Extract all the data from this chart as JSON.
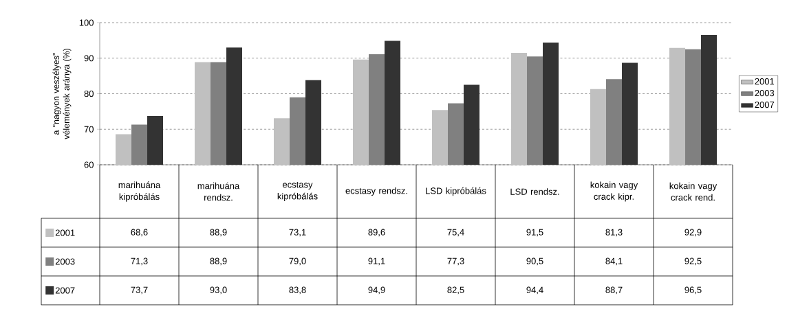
{
  "chart_data": {
    "type": "bar",
    "ylabel": "a \"nagyon veszélyes\" vélemények aránya (%)",
    "categories": [
      "marihuána kipróbálás",
      "marihuána rendsz.",
      "ecstasy kipróbálás",
      "ecstasy rendsz.",
      "LSD kipróbálás",
      "LSD rendsz.",
      "kokain vagy crack kipr.",
      "kokain vagy crack rend."
    ],
    "series": [
      {
        "name": "2001",
        "color": "#c0c0c0",
        "values": [
          68.6,
          88.9,
          73.1,
          89.6,
          75.4,
          91.5,
          81.3,
          92.9
        ],
        "value_labels": [
          "68,6",
          "88,9",
          "73,1",
          "89,6",
          "75,4",
          "91,5",
          "81,3",
          "92,9"
        ]
      },
      {
        "name": "2003",
        "color": "#808080",
        "values": [
          71.3,
          88.9,
          79.0,
          91.1,
          77.3,
          90.5,
          84.1,
          92.5
        ],
        "value_labels": [
          "71,3",
          "88,9",
          "79,0",
          "91,1",
          "77,3",
          "90,5",
          "84,1",
          "92,5"
        ]
      },
      {
        "name": "2007",
        "color": "#333333",
        "values": [
          73.7,
          93.0,
          83.8,
          94.9,
          82.5,
          94.4,
          88.7,
          96.5
        ],
        "value_labels": [
          "73,7",
          "93,0",
          "83,8",
          "94,9",
          "82,5",
          "94,4",
          "88,7",
          "96,5"
        ]
      }
    ],
    "ylim": [
      60,
      100
    ],
    "yticks": [
      60,
      70,
      80,
      90,
      100
    ],
    "grid": "y",
    "legend": "right"
  }
}
